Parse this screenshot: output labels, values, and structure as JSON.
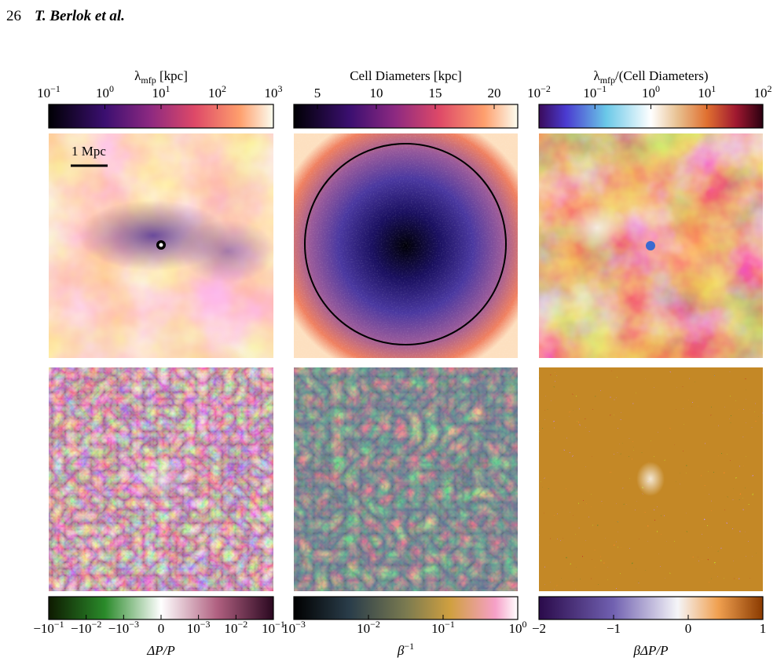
{
  "header": {
    "page": "26",
    "authors": "T. Berlok et al."
  },
  "figure": {
    "scale_bar": "1 Mpc",
    "top_colorbars": [
      {
        "label": [
          {
            "text": "λ"
          },
          {
            "text": "mfp",
            "sub": true
          },
          {
            "text": " [kpc]"
          }
        ],
        "scale": "log",
        "lim": [
          0.1,
          1000
        ],
        "ticks": [
          {
            "value": 0.1,
            "label": "10",
            "exp": "−1"
          },
          {
            "value": 1,
            "label": "10",
            "exp": "0"
          },
          {
            "value": 10,
            "label": "10",
            "exp": "1"
          },
          {
            "value": 100,
            "label": "10",
            "exp": "2"
          },
          {
            "value": 1000,
            "label": "10",
            "exp": "3"
          }
        ]
      },
      {
        "label": [
          {
            "text": "Cell Diameters [kpc]"
          }
        ],
        "scale": "linear",
        "lim": [
          3,
          22
        ],
        "ticks": [
          5,
          10,
          15,
          20
        ]
      },
      {
        "label": [
          {
            "text": "λ"
          },
          {
            "text": "mfp",
            "sub": true
          },
          {
            "text": "/(Cell Diameters)"
          }
        ],
        "scale": "log",
        "lim": [
          0.01,
          100
        ],
        "ticks": [
          {
            "value": 0.01,
            "label": "10",
            "exp": "−2"
          },
          {
            "value": 0.1,
            "label": "10",
            "exp": "−1"
          },
          {
            "value": 1,
            "label": "10",
            "exp": "0"
          },
          {
            "value": 10,
            "label": "10",
            "exp": "1"
          },
          {
            "value": 100,
            "label": "10",
            "exp": "2"
          }
        ]
      }
    ],
    "bottom_colorbars": [
      {
        "label": [
          {
            "text": "ΔP/P",
            "italic": true
          }
        ],
        "scale": "symlog",
        "linthresh": 0.001,
        "lim": [
          -0.1,
          0.1
        ],
        "ticks": [
          {
            "value": -0.1,
            "label": "−10",
            "exp": "−1"
          },
          {
            "value": -0.01,
            "label": "−10",
            "exp": "−2"
          },
          {
            "value": -0.001,
            "label": "−10",
            "exp": "−3"
          },
          0,
          {
            "value": 0.001,
            "label": "10",
            "exp": "−3"
          },
          {
            "value": 0.01,
            "label": "10",
            "exp": "−2"
          },
          {
            "value": 0.1,
            "label": "10",
            "exp": "−1"
          }
        ]
      },
      {
        "label": [
          {
            "text": "β",
            "italic": true
          },
          {
            "text": "−1",
            "sup": true
          }
        ],
        "scale": "log",
        "lim": [
          0.001,
          1
        ],
        "ticks": [
          {
            "value": 0.001,
            "label": "10",
            "exp": "−3"
          },
          {
            "value": 0.01,
            "label": "10",
            "exp": "−2"
          },
          {
            "value": 0.1,
            "label": "10",
            "exp": "−1"
          },
          {
            "value": 1,
            "label": "10",
            "exp": "0"
          }
        ]
      },
      {
        "label": [
          {
            "text": "βΔP/P",
            "italic": true
          }
        ],
        "scale": "linear",
        "lim": [
          -2,
          1
        ],
        "ticks": [
          {
            "value": -2,
            "label": "−2"
          },
          {
            "value": -1,
            "label": "−1"
          },
          0,
          1
        ]
      }
    ]
  }
}
